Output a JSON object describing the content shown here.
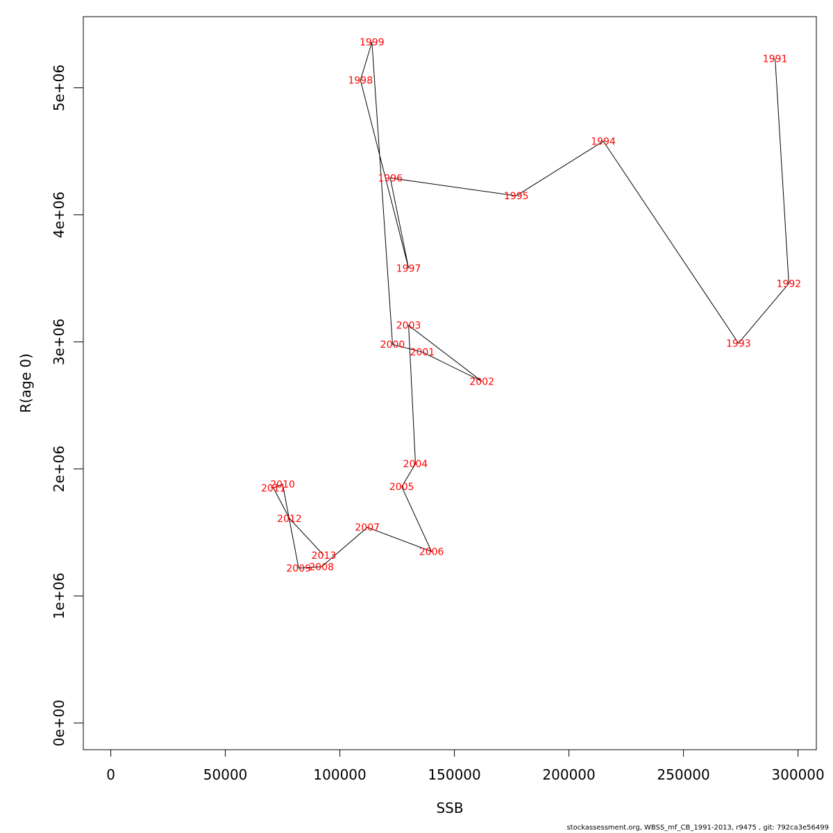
{
  "chart_data": {
    "type": "line",
    "xlabel": "SSB",
    "ylabel": "R(age 0)",
    "xlim": [
      -12000,
      308000
    ],
    "ylim": [
      -210000,
      5560000
    ],
    "x_ticks": [
      0,
      50000,
      100000,
      150000,
      200000,
      250000,
      300000
    ],
    "x_tick_labels": [
      "0",
      "50000",
      "100000",
      "150000",
      "200000",
      "250000",
      "300000"
    ],
    "y_ticks": [
      0,
      1000000,
      2000000,
      3000000,
      4000000,
      5000000
    ],
    "y_tick_labels": [
      "0e+00",
      "1e+06",
      "2e+06",
      "3e+06",
      "4e+06",
      "5e+06"
    ],
    "grid": false,
    "line_color": "#000000",
    "label_color": "#ff0000",
    "points": [
      {
        "year": "1991",
        "x": 290000,
        "y": 5230000
      },
      {
        "year": "1992",
        "x": 296000,
        "y": 3460000
      },
      {
        "year": "1993",
        "x": 274000,
        "y": 2990000
      },
      {
        "year": "1994",
        "x": 215000,
        "y": 4580000
      },
      {
        "year": "1995",
        "x": 177000,
        "y": 4150000
      },
      {
        "year": "1996",
        "x": 122000,
        "y": 4290000
      },
      {
        "year": "1997",
        "x": 130000,
        "y": 3580000
      },
      {
        "year": "1998",
        "x": 109000,
        "y": 5060000
      },
      {
        "year": "1999",
        "x": 114000,
        "y": 5360000
      },
      {
        "year": "2000",
        "x": 123000,
        "y": 2980000
      },
      {
        "year": "2001",
        "x": 136000,
        "y": 2920000
      },
      {
        "year": "2002",
        "x": 162000,
        "y": 2690000
      },
      {
        "year": "2003",
        "x": 130000,
        "y": 3130000
      },
      {
        "year": "2004",
        "x": 133000,
        "y": 2040000
      },
      {
        "year": "2005",
        "x": 127000,
        "y": 1860000
      },
      {
        "year": "2006",
        "x": 140000,
        "y": 1350000
      },
      {
        "year": "2007",
        "x": 112000,
        "y": 1540000
      },
      {
        "year": "2008",
        "x": 92000,
        "y": 1230000
      },
      {
        "year": "2009",
        "x": 82000,
        "y": 1220000
      },
      {
        "year": "2010",
        "x": 75000,
        "y": 1880000
      },
      {
        "year": "2011",
        "x": 71000,
        "y": 1850000
      },
      {
        "year": "2012",
        "x": 78000,
        "y": 1610000
      },
      {
        "year": "2013",
        "x": 93000,
        "y": 1320000
      }
    ]
  },
  "footer": "stockassessment.org, WBSS_mf_CB_1991-2013, r9475 , git: 792ca3e56499"
}
